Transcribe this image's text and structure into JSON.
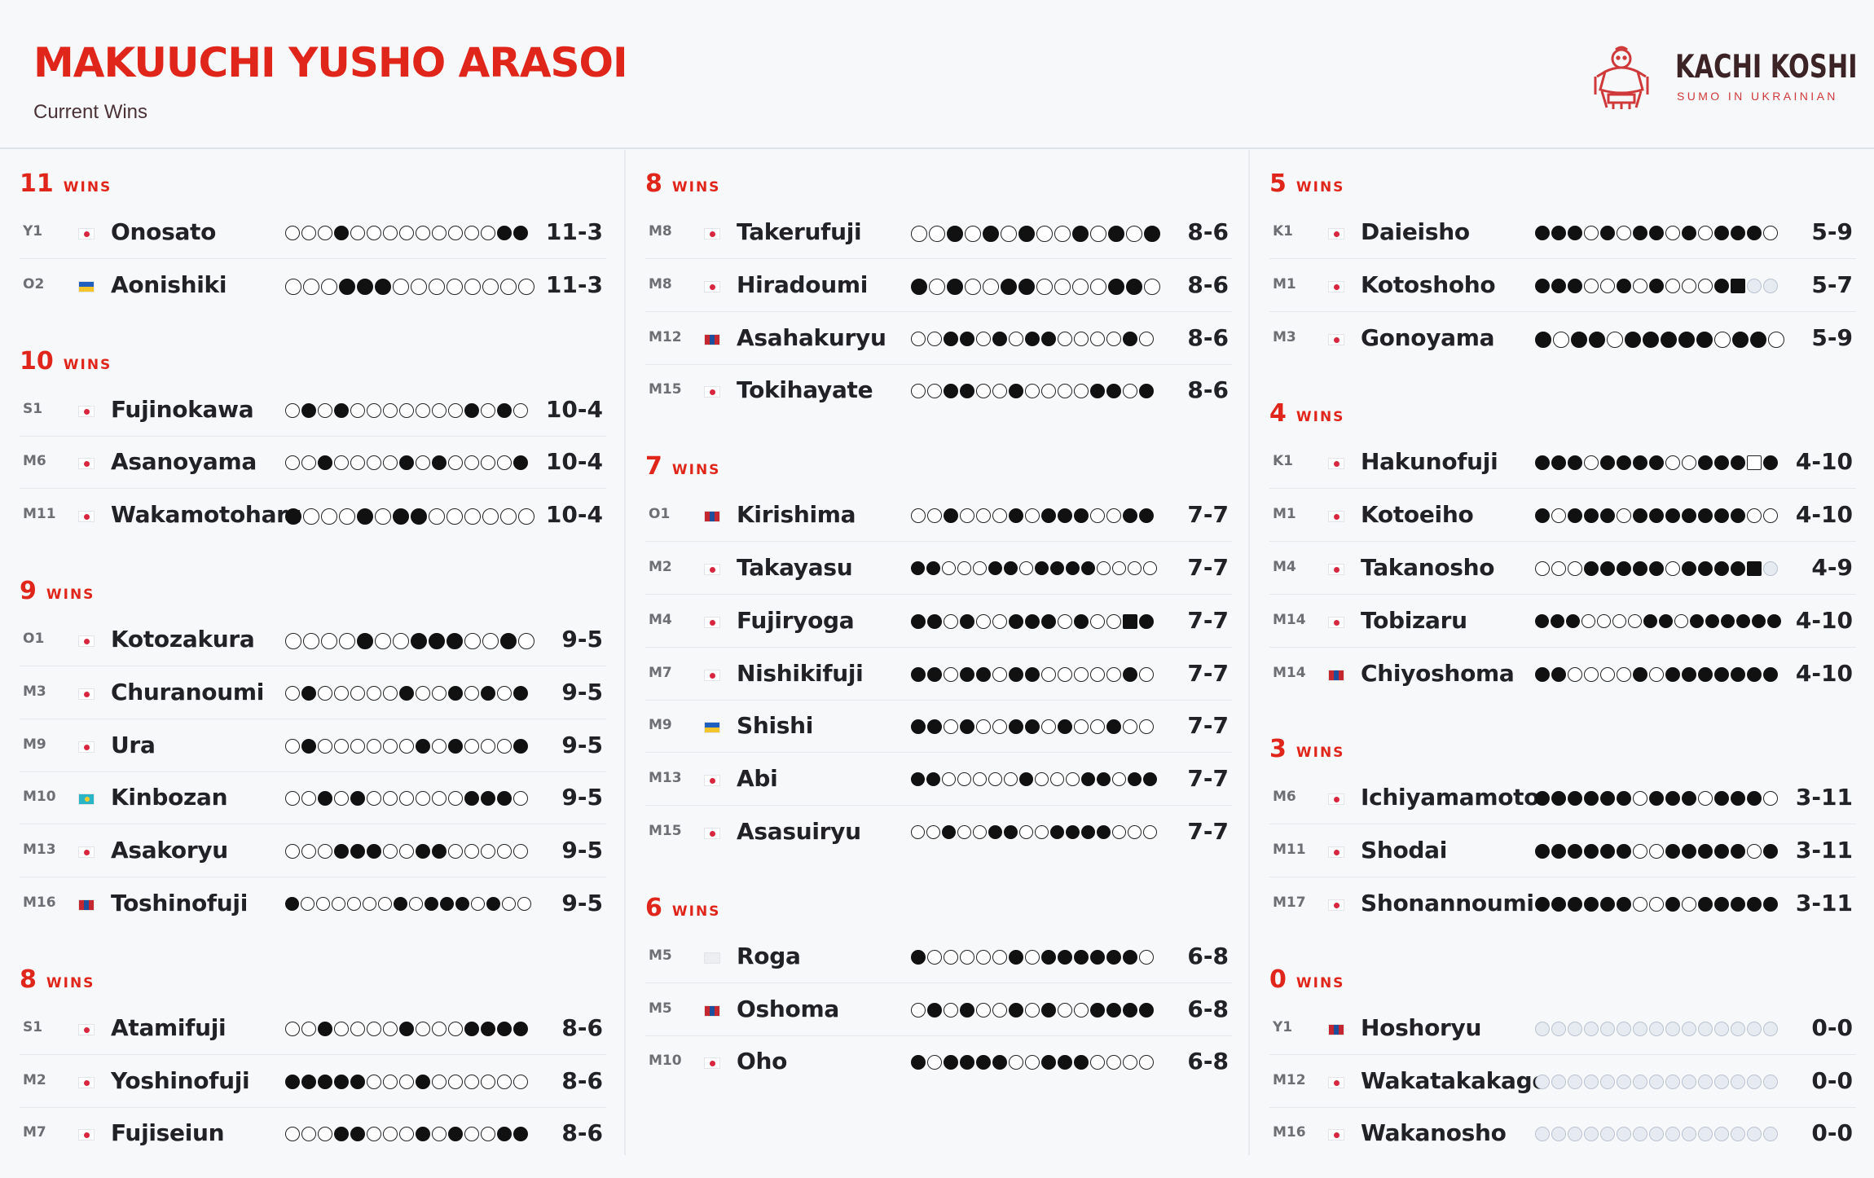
{
  "header": {
    "title": "MAKUUCHI YUSHO ARASOI",
    "subtitle": "Current Wins"
  },
  "logo": {
    "title": "KACHI KOSHI",
    "subtitle": "SUMO IN UKRAINIAN",
    "icon": "sumo-wrestler-icon"
  },
  "legend": {
    "win": "filled-circle",
    "loss": "empty-circle",
    "fusen_win": "filled-square",
    "fusen_loss": "empty-square",
    "not_fought": "grey-circle"
  },
  "colors": {
    "accent": "#e0261b",
    "text": "#222226",
    "logo_title": "#3b2326"
  },
  "columns": [
    {
      "groups": [
        {
          "wins": "11",
          "label": "WINS",
          "rows": [
            {
              "rank": "Y1",
              "flag": "jp",
              "name": "Onosato",
              "bouts": "oooxoooooooooxx",
              "record": "11-3"
            },
            {
              "rank": "O2",
              "flag": "ua",
              "name": "Aonishiki",
              "bouts": "oooxxxoooooooo",
              "record": "11-3"
            }
          ]
        },
        {
          "wins": "10",
          "label": "WINS",
          "rows": [
            {
              "rank": "S1",
              "flag": "jp",
              "name": "Fujinokawa",
              "bouts": "oxoxoooooooxoxo",
              "record": "10-4"
            },
            {
              "rank": "M6",
              "flag": "jp",
              "name": "Asanoyama",
              "bouts": "ooxooooxoxoooox",
              "record": "10-4"
            },
            {
              "rank": "M11",
              "flag": "jp",
              "name": "Wakamotoharu",
              "bouts": "xoooxoxxoooooo",
              "record": "10-4"
            }
          ]
        },
        {
          "wins": "9",
          "label": "WINS",
          "rows": [
            {
              "rank": "O1",
              "flag": "jp",
              "name": "Kotozakura",
              "bouts": "ooooxooxxxooxo",
              "record": "9-5"
            },
            {
              "rank": "M3",
              "flag": "jp",
              "name": "Churanoumi",
              "bouts": "oxoooooxooxoxox",
              "record": "9-5"
            },
            {
              "rank": "M9",
              "flag": "jp",
              "name": "Ura",
              "bouts": "oxooooooxoxooox",
              "record": "9-5"
            },
            {
              "rank": "M10",
              "flag": "kz",
              "name": "Kinbozan",
              "bouts": "ooxoxooooooxxxo",
              "record": "9-5"
            },
            {
              "rank": "M13",
              "flag": "jp",
              "name": "Asakoryu",
              "bouts": "oooxxxooxxooooo",
              "record": "9-5"
            },
            {
              "rank": "M16",
              "flag": "mn",
              "name": "Toshinofuji",
              "bouts": "xooooooxoxxxoxoo",
              "record": "9-5"
            }
          ]
        },
        {
          "wins": "8",
          "label": "WINS",
          "rows": [
            {
              "rank": "S1",
              "flag": "jp",
              "name": "Atamifuji",
              "bouts": "ooxooooxoooxxxx",
              "record": "8-6"
            },
            {
              "rank": "M2",
              "flag": "jp",
              "name": "Yoshinofuji",
              "bouts": "xxxxxoooxoooooo",
              "record": "8-6"
            },
            {
              "rank": "M7",
              "flag": "jp",
              "name": "Fujiseiun",
              "bouts": "oooxxoooxoxooxx",
              "record": "8-6"
            }
          ]
        }
      ]
    },
    {
      "groups": [
        {
          "wins": "8",
          "label": "WINS",
          "rows": [
            {
              "rank": "M8",
              "flag": "jp",
              "name": "Takerufuji",
              "bouts": "ooxoxoxooxoxox",
              "record": "8-6"
            },
            {
              "rank": "M8",
              "flag": "jp",
              "name": "Hiradoumi",
              "bouts": "xoxooxxooooxxo",
              "record": "8-6"
            },
            {
              "rank": "M12",
              "flag": "mn",
              "name": "Asahakuryu",
              "bouts": "ooxxoxoxxooooxo",
              "record": "8-6"
            },
            {
              "rank": "M15",
              "flag": "jp",
              "name": "Tokihayate",
              "bouts": "ooxxooxooooxxox",
              "record": "8-6"
            }
          ]
        },
        {
          "wins": "7",
          "label": "WINS",
          "rows": [
            {
              "rank": "O1",
              "flag": "mn",
              "name": "Kirishima",
              "bouts": "ooxoooxoxxxooxx",
              "record": "7-7"
            },
            {
              "rank": "M2",
              "flag": "jp",
              "name": "Takayasu",
              "bouts": "xxoooxxoxxxxoooo",
              "record": "7-7"
            },
            {
              "rank": "M4",
              "flag": "jp",
              "name": "Fujiryoga",
              "bouts": "xxoxooxxxoxooSx",
              "record": "7-7"
            },
            {
              "rank": "M7",
              "flag": "jp",
              "name": "Nishikifuji",
              "bouts": "xxoxxoxxoooooxo",
              "record": "7-7"
            },
            {
              "rank": "M9",
              "flag": "ua",
              "name": "Shishi",
              "bouts": "xxoxooxxoxooxoo",
              "record": "7-7"
            },
            {
              "rank": "M13",
              "flag": "jp",
              "name": "Abi",
              "bouts": "xxoooooxoooxxoxx",
              "record": "7-7"
            },
            {
              "rank": "M15",
              "flag": "jp",
              "name": "Asasuiryu",
              "bouts": "ooxooxxooxxxxooo",
              "record": "7-7"
            }
          ]
        },
        {
          "wins": "6",
          "label": "WINS",
          "rows": [
            {
              "rank": "M5",
              "flag": "white",
              "name": "Roga",
              "bouts": "xoooooxoxxxxxxo",
              "record": "6-8"
            },
            {
              "rank": "M5",
              "flag": "mn",
              "name": "Oshoma",
              "bouts": "oxoxooxoxooxxxx",
              "record": "6-8"
            },
            {
              "rank": "M10",
              "flag": "jp",
              "name": "Oho",
              "bouts": "xoxxxxooxxxoooo",
              "record": "6-8"
            }
          ]
        }
      ]
    },
    {
      "groups": [
        {
          "wins": "5",
          "label": "WINS",
          "rows": [
            {
              "rank": "K1",
              "flag": "jp",
              "name": "Daieisho",
              "bouts": "xxxoxoxxoxoxxxo",
              "record": "5-9"
            },
            {
              "rank": "M1",
              "flag": "jp",
              "name": "Kotoshoho",
              "bouts": "xxxooxoxoooxSnn",
              "record": "5-7"
            },
            {
              "rank": "M3",
              "flag": "jp",
              "name": "Gonoyama",
              "bouts": "xoxxoxxxxxoxxo",
              "record": "5-9"
            }
          ]
        },
        {
          "wins": "4",
          "label": "WINS",
          "rows": [
            {
              "rank": "K1",
              "flag": "jp",
              "name": "Hakunofuji",
              "bouts": "xxxoxxxxooxxxqx",
              "record": "4-10"
            },
            {
              "rank": "M1",
              "flag": "jp",
              "name": "Kotoeiho",
              "bouts": "xoxxxoxxxxxxxoo",
              "record": "4-10"
            },
            {
              "rank": "M4",
              "flag": "jp",
              "name": "Takanosho",
              "bouts": "oooxxxxxoxxxxSn",
              "record": "4-9"
            },
            {
              "rank": "M14",
              "flag": "jp",
              "name": "Tobizaru",
              "bouts": "xxxooooxxoxxxxxx",
              "record": "4-10"
            },
            {
              "rank": "M14",
              "flag": "mn",
              "name": "Chiyoshoma",
              "bouts": "xxooooxoxxxxxxx",
              "record": "4-10"
            }
          ]
        },
        {
          "wins": "3",
          "label": "WINS",
          "rows": [
            {
              "rank": "M6",
              "flag": "jp",
              "name": "Ichiyamamoto",
              "bouts": "xxxxxxoxxxoxxxo",
              "record": "3-11"
            },
            {
              "rank": "M11",
              "flag": "jp",
              "name": "Shodai",
              "bouts": "xxxxxxooxxxxxox",
              "record": "3-11"
            },
            {
              "rank": "M17",
              "flag": "jp",
              "name": "Shonannoumi",
              "bouts": "xxxxxxooxoxxxxx",
              "record": "3-11"
            }
          ]
        },
        {
          "wins": "0",
          "label": "WINS",
          "rows": [
            {
              "rank": "Y1",
              "flag": "mn",
              "name": "Hoshoryu",
              "bouts": "nnnnnnnnnnnnnnn",
              "record": "0-0"
            },
            {
              "rank": "M12",
              "flag": "jp",
              "name": "Wakatakakage",
              "bouts": "nnnnnnnnnnnnnnn",
              "record": "0-0"
            },
            {
              "rank": "M16",
              "flag": "jp",
              "name": "Wakanosho",
              "bouts": "nnnnnnnnnnnnnnn",
              "record": "0-0"
            }
          ]
        }
      ]
    }
  ]
}
